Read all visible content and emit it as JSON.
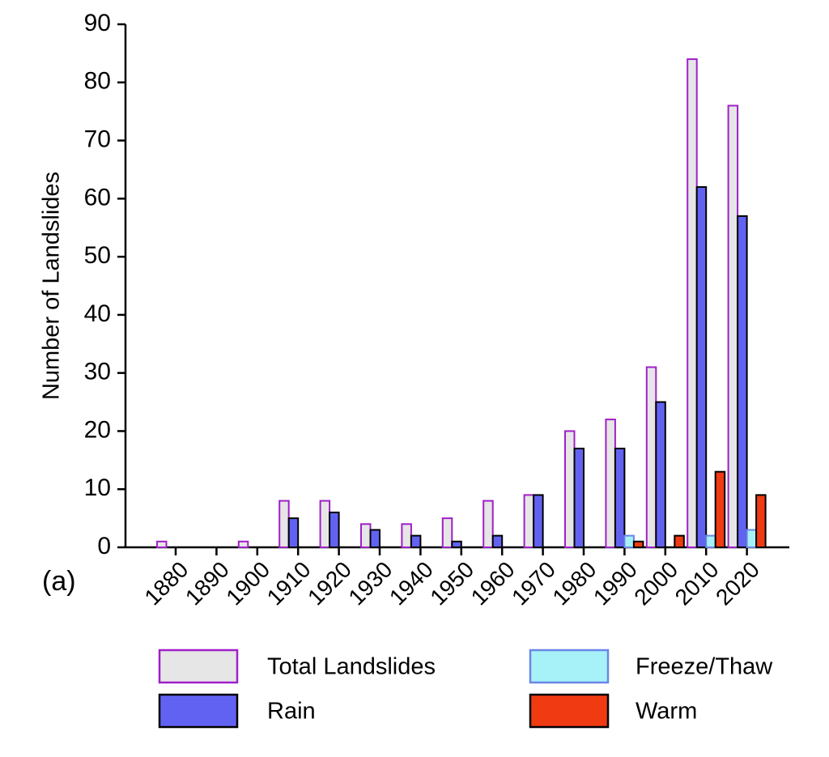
{
  "chart_data": {
    "type": "bar",
    "panel_label": "(a)",
    "ylabel": "Number of Landslides",
    "categories": [
      "1880",
      "1890",
      "1900",
      "1910",
      "1920",
      "1930",
      "1940",
      "1950",
      "1960",
      "1970",
      "1980",
      "1990",
      "2000",
      "2010",
      "2020"
    ],
    "series": [
      {
        "name": "Total Landslides",
        "color": "#e6e6e6",
        "stroke": "#a020c8",
        "values": [
          1,
          0,
          1,
          8,
          8,
          4,
          4,
          5,
          8,
          9,
          20,
          22,
          31,
          84,
          76
        ]
      },
      {
        "name": "Rain",
        "color": "#6262f2",
        "stroke": "#000000",
        "values": [
          0,
          0,
          0,
          5,
          6,
          3,
          2,
          1,
          2,
          9,
          17,
          17,
          25,
          62,
          57
        ]
      },
      {
        "name": "Freeze/Thaw",
        "color": "#a6f2f8",
        "stroke": "#6a86e6",
        "values": [
          0,
          0,
          0,
          0,
          0,
          0,
          0,
          0,
          0,
          0,
          0,
          2,
          0,
          2,
          3
        ]
      },
      {
        "name": "Warm",
        "color": "#f03a12",
        "stroke": "#000000",
        "values": [
          0,
          0,
          0,
          0,
          0,
          0,
          0,
          0,
          0,
          0,
          0,
          1,
          2,
          13,
          9
        ]
      }
    ],
    "ylim": [
      0,
      90
    ],
    "yticks": [
      0,
      10,
      20,
      30,
      40,
      50,
      60,
      70,
      80,
      90
    ]
  }
}
